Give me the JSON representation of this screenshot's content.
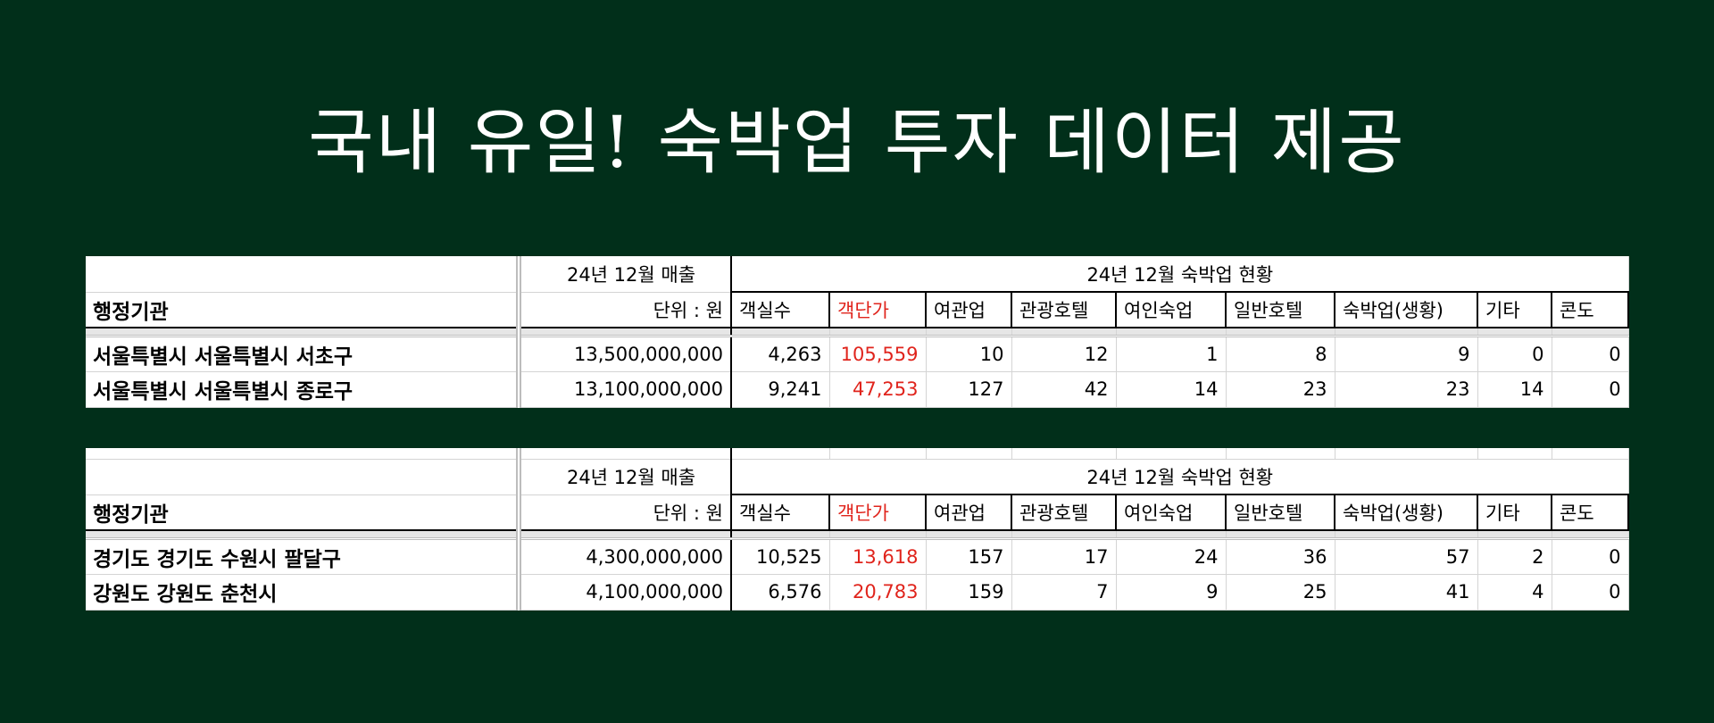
{
  "title": "국내 유일! 숙박업 투자 데이터 제공",
  "header": {
    "agency_label": "행정기관",
    "sales_label": "24년 12월 매출",
    "unit_label": "단위 : 원",
    "status_label": "24년 12월 숙박업 현황",
    "columns": [
      "객실수",
      "객단가",
      "여관업",
      "관광호텔",
      "여인숙업",
      "일반호텔",
      "숙박업(생황)",
      "기타",
      "콘도"
    ]
  },
  "tables": [
    {
      "rows": [
        {
          "agency": "서울특별시 서울특별시 서초구",
          "sales": "13,500,000,000",
          "values": [
            "4,263",
            "105,559",
            "10",
            "12",
            "1",
            "8",
            "9",
            "0",
            "0"
          ]
        },
        {
          "agency": "서울특별시 서울특별시 종로구",
          "sales": "13,100,000,000",
          "values": [
            "9,241",
            "47,253",
            "127",
            "42",
            "14",
            "23",
            "23",
            "14",
            "0"
          ]
        }
      ]
    },
    {
      "rows": [
        {
          "agency": "경기도 경기도 수원시 팔달구",
          "sales": "4,300,000,000",
          "values": [
            "10,525",
            "13,618",
            "157",
            "17",
            "24",
            "36",
            "57",
            "2",
            "0"
          ]
        },
        {
          "agency": "강원도 강원도 춘천시",
          "sales": "4,100,000,000",
          "values": [
            "6,576",
            "20,783",
            "159",
            "7",
            "9",
            "25",
            "41",
            "4",
            "0"
          ]
        }
      ]
    }
  ],
  "colors": {
    "background": "#012f1a",
    "highlight": "#e0241c"
  }
}
